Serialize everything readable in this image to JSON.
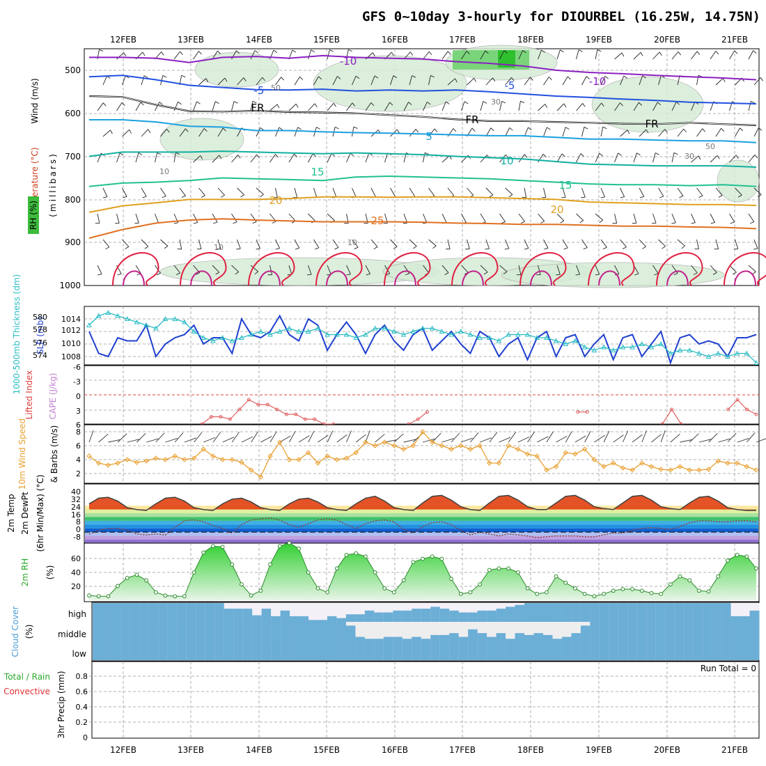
{
  "title": "GFS 0~10day 3-hourly for DIOURBEL (16.25W, 14.75N)",
  "dates": [
    "12FEB",
    "13FEB",
    "14FEB",
    "15FEB",
    "16FEB",
    "17FEB",
    "18FEB",
    "19FEB",
    "20FEB",
    "21FEB"
  ],
  "run_total": "Run Total = 0",
  "colors": {
    "slp": "#1f3fcf",
    "thickness": "#2bbcc4",
    "lifted": "#e06060",
    "wind10": "#e8a030",
    "rh": "#2a8a2a",
    "cloud": "#6baed6",
    "freezing": "#000000"
  },
  "chart_data": [
    {
      "type": "line",
      "panel": "upper-air",
      "ylabels": [
        "Wind (m/s)",
        "Temperature (°C)",
        "RH (%)",
        "(millibars)"
      ],
      "y_ticks": [
        "500",
        "600",
        "700",
        "800",
        "900",
        "1000"
      ],
      "ylim": [
        1000,
        450
      ],
      "isotherms": [
        {
          "label": "-10",
          "values": [
            470,
            470,
            472,
            482,
            470,
            468,
            472,
            466,
            470,
            472,
            474,
            480,
            484,
            490,
            500,
            505,
            508,
            512,
            515,
            518,
            522
          ]
        },
        {
          "label": "-5",
          "values": [
            515,
            512,
            522,
            535,
            540,
            545,
            546,
            544,
            548,
            546,
            548,
            546,
            550,
            555,
            560,
            563,
            567,
            570,
            574,
            576,
            578
          ]
        },
        {
          "label": "FR",
          "values": [
            560,
            562,
            580,
            595,
            596,
            594,
            597,
            598,
            600,
            604,
            608,
            614,
            618,
            618,
            620,
            622,
            624,
            625,
            622,
            625,
            628
          ]
        },
        {
          "label": "5",
          "values": [
            615,
            615,
            620,
            630,
            632,
            640,
            640,
            643,
            645,
            646,
            648,
            650,
            652,
            652,
            656,
            660,
            660,
            662,
            664,
            664,
            668
          ]
        },
        {
          "label": "10",
          "values": [
            700,
            690,
            690,
            690,
            688,
            690,
            692,
            694,
            692,
            694,
            696,
            700,
            703,
            706,
            712,
            718,
            720,
            722,
            722,
            722,
            725
          ]
        },
        {
          "label": "15",
          "values": [
            770,
            762,
            760,
            756,
            750,
            752,
            754,
            756,
            748,
            746,
            748,
            750,
            752,
            756,
            760,
            764,
            766,
            766,
            768,
            766,
            770
          ]
        },
        {
          "label": "20",
          "values": [
            830,
            815,
            808,
            800,
            800,
            800,
            798,
            794,
            794,
            795,
            794,
            794,
            796,
            798,
            800,
            806,
            808,
            810,
            812,
            812,
            814
          ]
        },
        {
          "label": "25",
          "values": [
            890,
            870,
            855,
            848,
            845,
            848,
            850,
            852,
            852,
            852,
            853,
            855,
            856,
            858,
            858,
            860,
            862,
            862,
            864,
            865,
            868
          ]
        }
      ],
      "contour_labels": [
        "-10",
        "-10",
        "-5",
        "-5",
        "FR",
        "FR",
        "FR",
        "5",
        "10",
        "15",
        "15",
        "20",
        "20",
        "25",
        "50",
        "30",
        "50",
        "30",
        "10",
        "10",
        "10"
      ]
    },
    {
      "type": "line",
      "panel": "slp-thickness",
      "ylabels": [
        "1000-500mb Thickness (dm)",
        "SLP (mb)"
      ],
      "left_ticks": [
        "580",
        "578",
        "576",
        "574"
      ],
      "right_ticks": [
        "1014",
        "1012",
        "1010",
        "1008"
      ],
      "series": [
        {
          "name": "SLP (mb)",
          "values": [
            1012,
            1008.5,
            1008,
            1011,
            1010.5,
            1010.5,
            1013,
            1008,
            1010,
            1011,
            1011.5,
            1013,
            1010,
            1011,
            1011,
            1008.5,
            1014,
            1011.5,
            1011,
            1012,
            1014.5,
            1011.5,
            1010.5,
            1014,
            1013,
            1009,
            1011.5,
            1013.5,
            1011.5,
            1008.5,
            1011.5,
            1013,
            1010.5,
            1009,
            1011.5,
            1012.5,
            1009,
            1010.5,
            1012,
            1010,
            1008.5,
            1012,
            1011,
            1008,
            1010,
            1011,
            1007.5,
            1011,
            1012,
            1008,
            1011,
            1011.5,
            1008,
            1010,
            1011.5,
            1007.5,
            1011,
            1011.5,
            1008,
            1010,
            1012,
            1007,
            1011,
            1011.5,
            1010,
            1010.5,
            1010,
            1008,
            1011,
            1011,
            1011.5
          ]
        },
        {
          "name": "1000-500mb Thickness (dm)",
          "values": [
            579,
            580.5,
            581,
            580.5,
            580,
            579.5,
            579,
            578.5,
            580,
            580,
            579.5,
            578,
            577,
            576.5,
            577,
            576.5,
            577,
            577.5,
            578,
            577.5,
            578,
            578.5,
            578,
            578,
            578.5,
            577.5,
            577.5,
            577.5,
            577,
            577.5,
            578.5,
            578.5,
            578,
            577.5,
            578,
            578.5,
            578.5,
            578,
            577.5,
            578,
            577.5,
            577,
            577,
            576.5,
            577.5,
            577.5,
            577.5,
            577,
            577,
            576.5,
            576,
            576.5,
            575.5,
            575,
            575.5,
            575,
            575.5,
            575.5,
            576,
            575.5,
            576,
            574.5,
            575,
            575,
            574.5,
            574,
            574.5,
            574,
            574.5,
            574.5,
            573
          ]
        }
      ]
    },
    {
      "type": "line",
      "panel": "stability",
      "ylabels": [
        "Lifted Index",
        "CAPE (J/kg)"
      ],
      "y_ticks": [
        "-6",
        "-3",
        "0",
        "3",
        "6"
      ],
      "series": [
        {
          "name": "Lifted Index",
          "values": [
            null,
            null,
            null,
            null,
            null,
            null,
            null,
            null,
            null,
            null,
            null,
            null,
            6,
            4.5,
            4.5,
            5,
            3,
            1,
            2,
            2,
            3,
            4,
            4,
            5,
            5,
            6,
            6,
            null,
            null,
            null,
            null,
            null,
            null,
            null,
            6,
            5,
            3.5,
            null,
            null,
            null,
            null,
            null,
            null,
            null,
            null,
            null,
            null,
            null,
            null,
            null,
            null,
            null,
            3.5,
            3.5,
            null,
            null,
            null,
            null,
            null,
            null,
            null,
            6,
            3,
            6,
            null,
            null,
            null,
            null,
            3,
            1,
            3,
            4
          ]
        }
      ]
    },
    {
      "type": "line",
      "panel": "wind10",
      "ylabels": [
        "10m Wind Speed",
        "& Barbs (m/s)"
      ],
      "y_ticks": [
        "8",
        "6",
        "4",
        "2"
      ],
      "series": [
        {
          "name": "10m Wind Speed",
          "values": [
            4.5,
            3.5,
            3.2,
            3.5,
            4.0,
            3.6,
            3.8,
            4.2,
            4.0,
            4.5,
            4.0,
            4.2,
            5.5,
            4.5,
            4.0,
            4.0,
            3.6,
            2.5,
            1.5,
            4.5,
            6.5,
            4.0,
            4.0,
            5.0,
            3.5,
            4.5,
            4.0,
            4.2,
            5.0,
            6.5,
            6.0,
            6.5,
            6.0,
            5.5,
            6.0,
            8.0,
            6.5,
            6.0,
            5.5,
            6.0,
            5.5,
            6.0,
            3.5,
            3.5,
            6.0,
            5.5,
            4.8,
            4.5,
            2.5,
            3.0,
            5.0,
            4.8,
            5.5,
            4.0,
            3.0,
            3.5,
            2.8,
            2.5,
            3.5,
            3.0,
            2.6,
            2.5,
            3.0,
            2.5,
            2.5,
            2.6,
            3.8,
            3.5,
            3.5,
            3.0,
            2.5
          ]
        }
      ]
    },
    {
      "type": "area",
      "panel": "temperature",
      "ylabels": [
        "2m Temp",
        "2m DewPt",
        "(6hr Min/Max) (°C)"
      ],
      "y_ticks": [
        "40",
        "32",
        "24",
        "16",
        "8",
        "0",
        "-8"
      ],
      "series": [
        {
          "name": "2m Temp",
          "values": [
            30,
            36,
            37,
            33,
            26,
            24,
            23,
            30,
            36,
            37,
            33,
            26,
            24,
            23,
            30,
            35,
            36,
            32,
            26,
            24,
            23,
            30,
            35,
            36,
            32,
            26,
            24,
            23,
            30,
            36,
            38,
            33,
            26,
            24,
            23,
            31,
            38,
            39,
            34,
            27,
            24,
            23,
            31,
            38,
            39,
            34,
            27,
            24,
            24,
            31,
            38,
            39,
            34,
            27,
            25,
            24,
            31,
            38,
            39,
            34,
            27,
            25,
            24,
            31,
            37,
            38,
            33,
            26,
            24,
            23,
            23
          ]
        },
        {
          "name": "2m DewPt",
          "values": [
            -2,
            2,
            4,
            4,
            2,
            -2,
            -3,
            -2,
            -3,
            5,
            12,
            13,
            11,
            7,
            4,
            -1,
            8,
            13,
            14,
            15,
            13,
            8,
            5,
            9,
            13,
            14,
            13,
            8,
            4,
            9,
            12,
            13,
            11,
            3,
            -1,
            6,
            10,
            11,
            8,
            2,
            -3,
            0,
            -2,
            -4,
            -2,
            -3,
            -4,
            -6,
            -5,
            -4,
            -4,
            -4,
            -5,
            -5,
            -3,
            -1,
            -1,
            2,
            4,
            5,
            4,
            3,
            6,
            10,
            12,
            12,
            11,
            11,
            12,
            12,
            11
          ]
        }
      ]
    },
    {
      "type": "area",
      "panel": "rh",
      "ylabels": [
        "2m RH",
        "(%)"
      ],
      "y_ticks": [
        "60",
        "40",
        "20"
      ],
      "series": [
        {
          "name": "2m RH",
          "values": [
            6,
            5,
            5,
            18,
            28,
            32,
            25,
            10,
            6,
            5,
            5,
            35,
            60,
            68,
            67,
            45,
            20,
            6,
            12,
            45,
            68,
            72,
            65,
            35,
            15,
            10,
            40,
            57,
            59,
            55,
            35,
            15,
            10,
            25,
            48,
            52,
            55,
            52,
            27,
            8,
            10,
            20,
            38,
            40,
            40,
            35,
            15,
            8,
            10,
            30,
            22,
            15,
            8,
            5,
            8,
            12,
            14,
            14,
            12,
            9,
            8,
            20,
            30,
            25,
            12,
            11,
            30,
            50,
            57,
            55,
            40
          ]
        }
      ]
    },
    {
      "type": "area",
      "panel": "cloud",
      "ylabels": [
        "Cloud Cover",
        "(%)"
      ],
      "y_ticks": [
        "high",
        "middle",
        "low"
      ],
      "series": [
        {
          "name": "high",
          "values": [
            100,
            100,
            100,
            100,
            100,
            100,
            100,
            100,
            100,
            100,
            100,
            100,
            100,
            100,
            70,
            70,
            70,
            35,
            70,
            30,
            60,
            30,
            30,
            10,
            10,
            30,
            20,
            40,
            40,
            60,
            50,
            50,
            60,
            60,
            70,
            70,
            80,
            70,
            60,
            50,
            50,
            60,
            60,
            70,
            80,
            90,
            100,
            100,
            100,
            100,
            100,
            100,
            100,
            100,
            100,
            100,
            100,
            100,
            100,
            100,
            100,
            100,
            100,
            100,
            100,
            100,
            100,
            100,
            30,
            30,
            60
          ]
        },
        {
          "name": "middle",
          "values": [
            100,
            100,
            100,
            100,
            100,
            100,
            100,
            100,
            100,
            100,
            100,
            100,
            100,
            100,
            100,
            100,
            100,
            100,
            100,
            100,
            100,
            100,
            100,
            100,
            100,
            100,
            100,
            80,
            20,
            10,
            10,
            20,
            20,
            10,
            20,
            10,
            30,
            30,
            40,
            20,
            60,
            40,
            20,
            40,
            10,
            40,
            30,
            40,
            30,
            10,
            20,
            40,
            80,
            100,
            100,
            100,
            100,
            100,
            100,
            100,
            100,
            100,
            100,
            100,
            100,
            100,
            100,
            100,
            100,
            100,
            100
          ]
        },
        {
          "name": "low",
          "values": [
            100,
            100,
            100,
            100,
            100,
            100,
            100,
            100,
            100,
            100,
            100,
            100,
            100,
            100,
            100,
            100,
            100,
            100,
            100,
            100,
            100,
            100,
            100,
            100,
            100,
            100,
            100,
            100,
            100,
            100,
            100,
            100,
            100,
            100,
            100,
            100,
            100,
            100,
            100,
            100,
            100,
            100,
            100,
            100,
            100,
            100,
            100,
            100,
            100,
            100,
            100,
            100,
            100,
            100,
            100,
            100,
            100,
            100,
            100,
            100,
            100,
            100,
            100,
            100,
            100,
            100,
            100,
            100,
            100,
            100,
            100
          ]
        }
      ]
    },
    {
      "type": "bar",
      "panel": "precip",
      "ylabels": [
        "Total / Rain",
        "Convective",
        "3hr Precip (mm)"
      ],
      "y_ticks": [
        "0.8",
        "0.6",
        "0.4",
        "0.2",
        "0"
      ],
      "ylim": [
        0,
        1
      ],
      "series": [
        {
          "name": "Total / Rain",
          "values": []
        },
        {
          "name": "Convective",
          "values": []
        }
      ]
    }
  ]
}
